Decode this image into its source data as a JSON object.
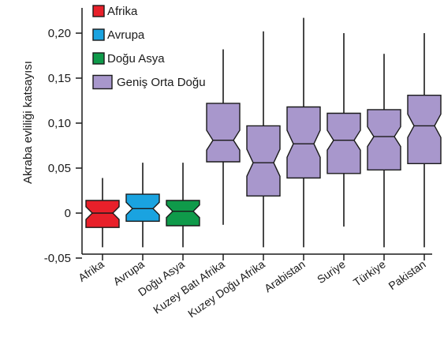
{
  "chart_data": {
    "type": "box",
    "ylabel": "Akraba evliliği katsayısı",
    "ylim": [
      -0.05,
      0.2
    ],
    "yticks": [
      {
        "value": -0.05,
        "label": "-0,05"
      },
      {
        "value": 0,
        "label": "0"
      },
      {
        "value": 0.05,
        "label": "0,05"
      },
      {
        "value": 0.1,
        "label": "0,10"
      },
      {
        "value": 0.15,
        "label": "0,15"
      },
      {
        "value": 0.2,
        "label": "0,20"
      }
    ],
    "legend": {
      "placement": "top-left",
      "entries": [
        {
          "label": "Afrika",
          "color": "#e8202a"
        },
        {
          "label": "Avrupa",
          "color": "#1aa3e0"
        },
        {
          "label": "Doğu Asya",
          "color": "#0f9a4a"
        },
        {
          "label": "Geniş Orta Doğu",
          "color": "#a897cc"
        }
      ]
    },
    "boxes": [
      {
        "category": "Afrika",
        "group": "Afrika",
        "whisker_low": -0.038,
        "q1": -0.016,
        "median": 0.0,
        "q3": 0.014,
        "whisker_high": 0.039,
        "notch": 0.007
      },
      {
        "category": "Avrupa",
        "group": "Avrupa",
        "whisker_low": -0.038,
        "q1": -0.009,
        "median": 0.005,
        "q3": 0.021,
        "whisker_high": 0.056,
        "notch": 0.007
      },
      {
        "category": "Doğu Asya",
        "group": "Doğu Asya",
        "whisker_low": -0.038,
        "q1": -0.014,
        "median": 0.002,
        "q3": 0.014,
        "whisker_high": 0.056,
        "notch": 0.007
      },
      {
        "category": "Kuzey Batı Afrika",
        "group": "Geniş Orta Doğu",
        "whisker_low": -0.013,
        "q1": 0.057,
        "median": 0.081,
        "q3": 0.122,
        "whisker_high": 0.182,
        "notch": 0.011
      },
      {
        "category": "Kuzey Doğu Afrika",
        "group": "Geniş Orta Doğu",
        "whisker_low": -0.038,
        "q1": 0.019,
        "median": 0.056,
        "q3": 0.097,
        "whisker_high": 0.202,
        "notch": 0.015
      },
      {
        "category": "Arabistan",
        "group": "Geniş Orta Doğu",
        "whisker_low": -0.038,
        "q1": 0.039,
        "median": 0.077,
        "q3": 0.118,
        "whisker_high": 0.217,
        "notch": 0.015
      },
      {
        "category": "Suriye",
        "group": "Geniş Orta Doğu",
        "whisker_low": -0.015,
        "q1": 0.044,
        "median": 0.081,
        "q3": 0.111,
        "whisker_high": 0.2,
        "notch": 0.011
      },
      {
        "category": "Türkiye",
        "group": "Geniş Orta Doğu",
        "whisker_low": -0.038,
        "q1": 0.048,
        "median": 0.085,
        "q3": 0.115,
        "whisker_high": 0.177,
        "notch": 0.011
      },
      {
        "category": "Pakistan",
        "group": "Geniş Orta Doğu",
        "whisker_low": -0.038,
        "q1": 0.055,
        "median": 0.097,
        "q3": 0.131,
        "whisker_high": 0.2,
        "notch": 0.013
      }
    ]
  }
}
